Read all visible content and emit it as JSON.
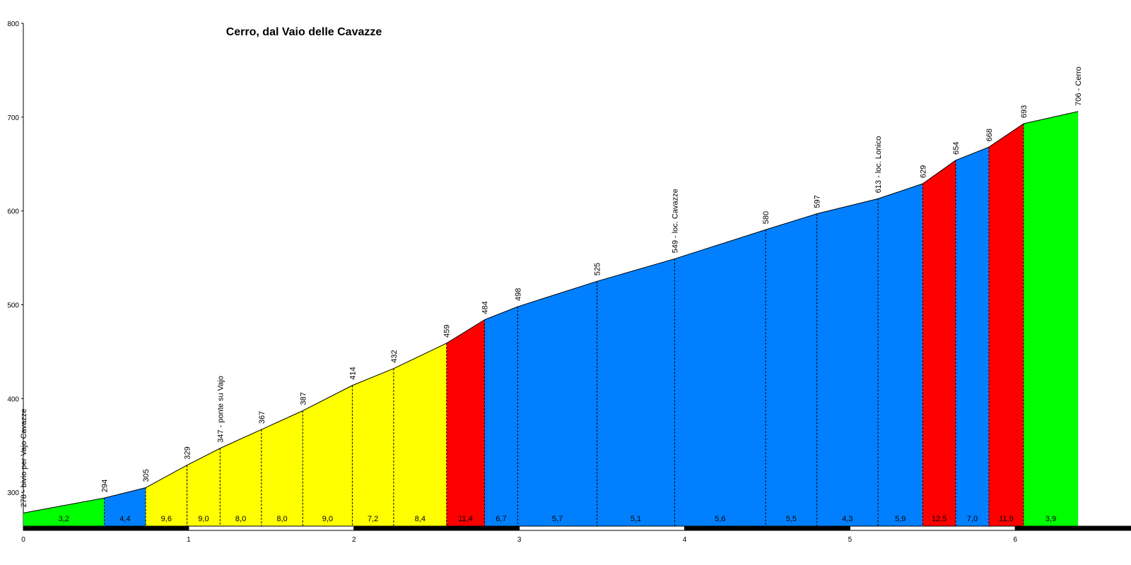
{
  "chart_data": {
    "type": "profile",
    "title": "Cerro, dal Vaio delle Cavazze",
    "x": [
      0,
      0.49,
      0.74,
      0.99,
      1.19,
      1.44,
      1.69,
      1.99,
      2.24,
      2.56,
      2.79,
      2.99,
      3.47,
      3.94,
      4.49,
      4.8,
      5.17,
      5.44,
      5.64,
      5.84,
      6.05,
      6.38
    ],
    "values": [
      278,
      294,
      305,
      329,
      347,
      367,
      387,
      414,
      432,
      459,
      484,
      498,
      525,
      549,
      580,
      597,
      613,
      629,
      654,
      668,
      693,
      706
    ],
    "value_labels": [
      "278 - bivio per Vajo Cavazze",
      null,
      null,
      null,
      "347 - ponte su Vajo",
      null,
      null,
      null,
      null,
      null,
      null,
      null,
      null,
      "549 - loc. Cavazze",
      null,
      null,
      "613 - loc. Lonico",
      null,
      null,
      null,
      null,
      "706 - Cerro"
    ],
    "gradient_labels": [
      "3,2",
      "4,4",
      "9,6",
      "9,0",
      "8,0",
      "8,0",
      "9,0",
      "7,2",
      "8,4",
      "11,4",
      "6,7",
      "5,7",
      "5,1",
      "5,6",
      "5,5",
      "4,3",
      "5,9",
      "12,5",
      "7,0",
      "11,9",
      "3,9"
    ],
    "segment_colors": [
      "#00ff00",
      "#0080ff",
      "#ffff00",
      "#ffff00",
      "#ffff00",
      "#ffff00",
      "#ffff00",
      "#ffff00",
      "#ffff00",
      "#ff0000",
      "#0080ff",
      "#0080ff",
      "#0080ff",
      "#0080ff",
      "#0080ff",
      "#0080ff",
      "#0080ff",
      "#ff0000",
      "#0080ff",
      "#ff0000",
      "#00ff00"
    ],
    "xlim": [
      0,
      6.7
    ],
    "ylim": [
      264,
      800
    ],
    "xticks": [
      0,
      1,
      2,
      3,
      4,
      5,
      6
    ],
    "yticks": [
      300,
      400,
      500,
      600,
      700,
      800
    ]
  }
}
